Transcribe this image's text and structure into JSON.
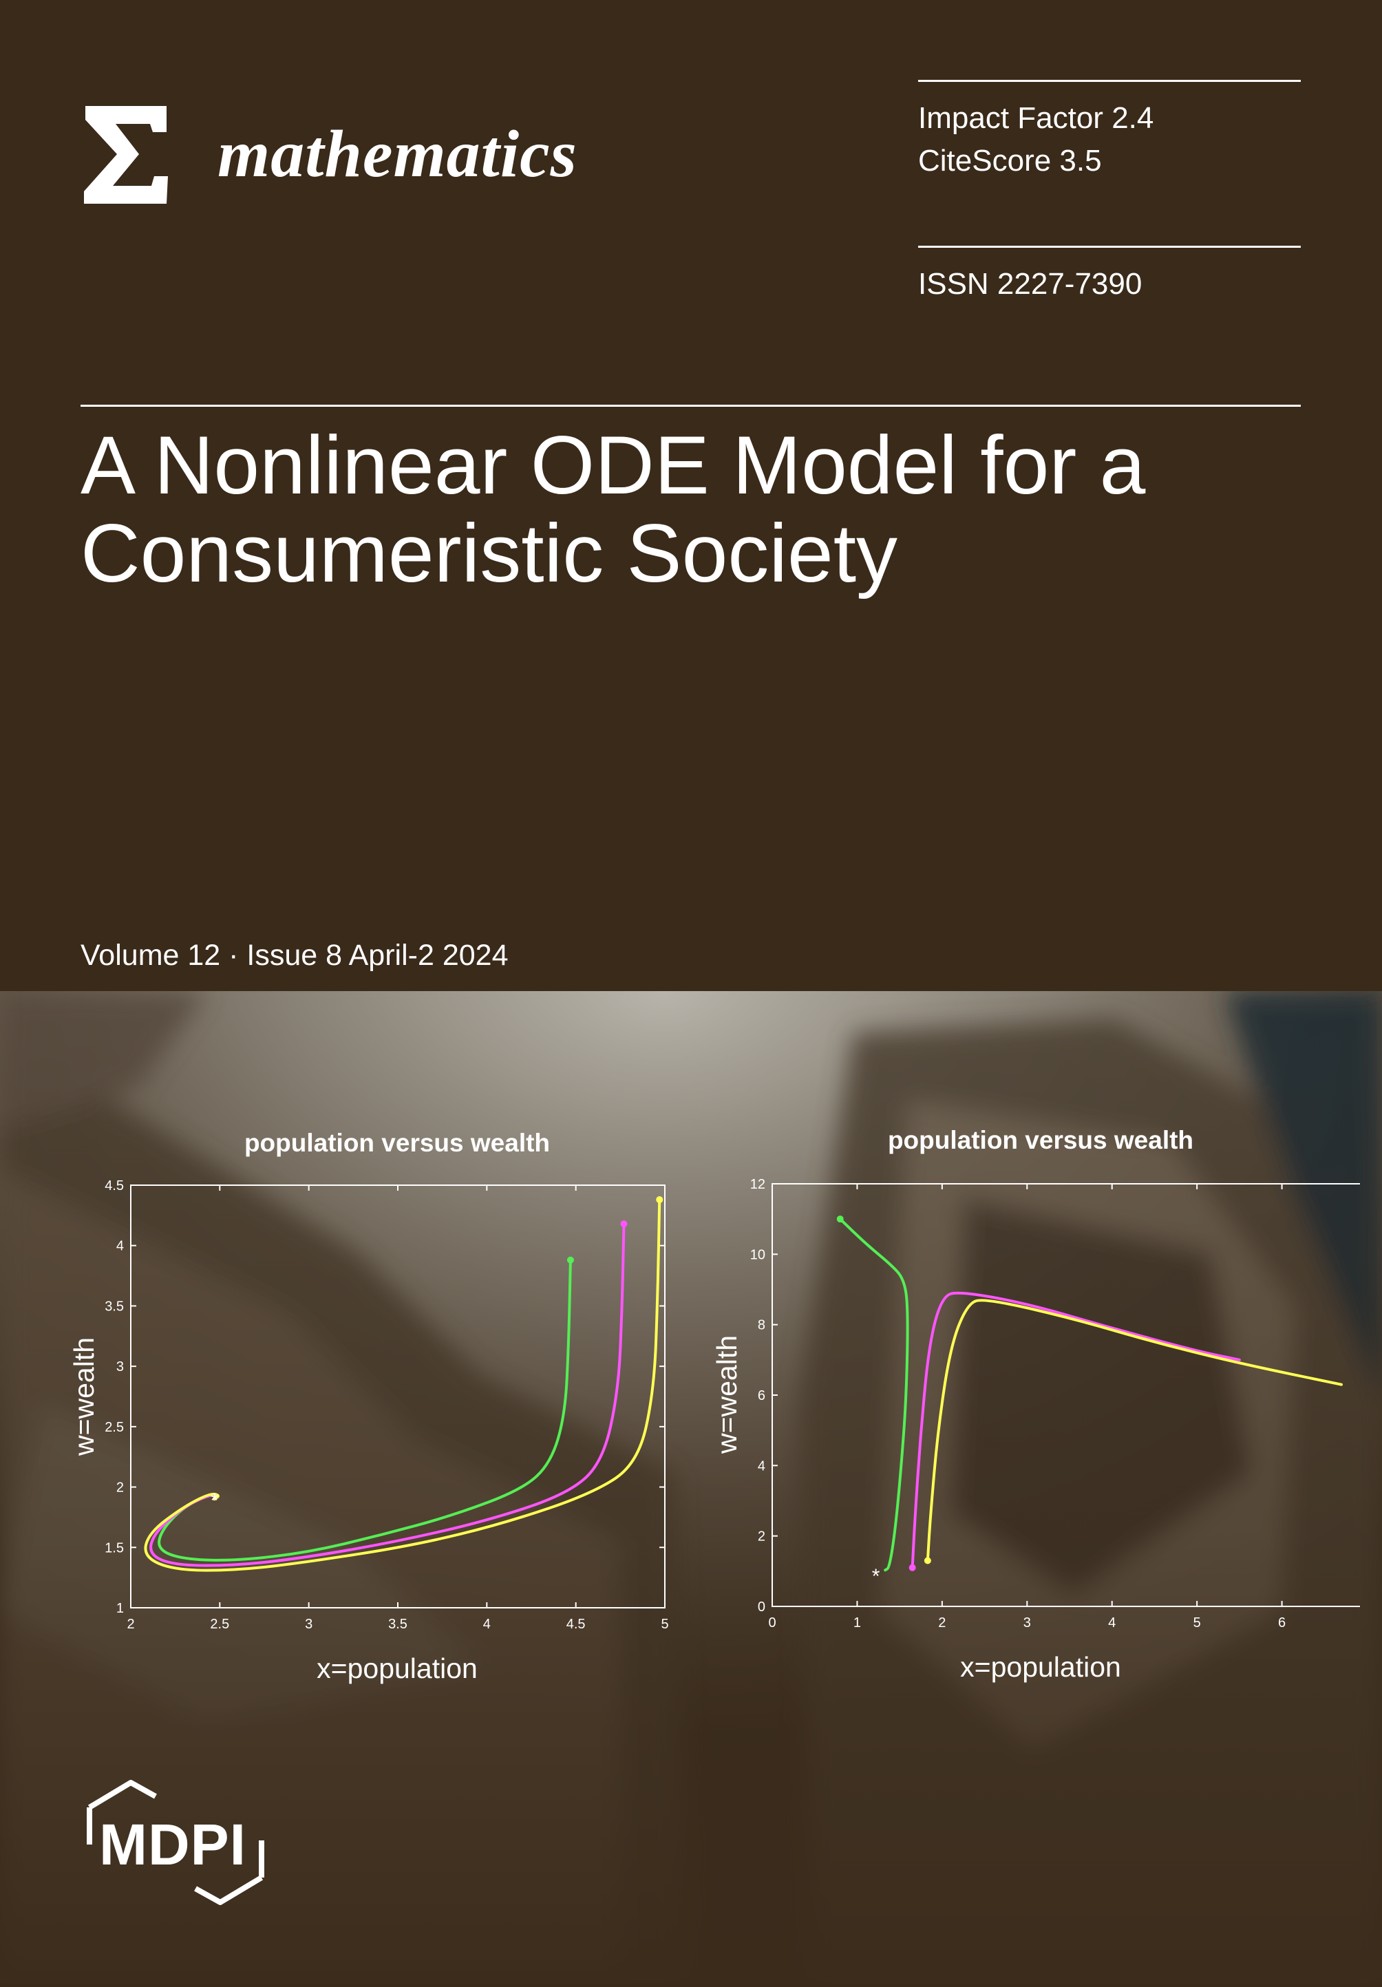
{
  "journal": {
    "name": "mathematics",
    "logo_icon": "sigma-icon"
  },
  "metrics": {
    "impact_factor": "Impact Factor 2.4",
    "citescore": "CiteScore 3.5",
    "issn": "ISSN 2227-7390"
  },
  "article": {
    "title": "A Nonlinear ODE Model for a\nConsumeristic Society"
  },
  "issue": {
    "label": "Volume 12 · Issue 8 April-2 2024"
  },
  "publisher": {
    "name": "MDPI",
    "logo_icon": "mdpi-hexagon-logo-icon"
  },
  "colors": {
    "background": "#3a2a1a",
    "series_green": "#55ee55",
    "series_magenta": "#ff55ff",
    "series_yellow": "#ffff55"
  },
  "chart_data": [
    {
      "type": "line",
      "title": "population versus wealth",
      "xlabel": "x=population",
      "ylabel": "w=wealth",
      "xlim": [
        2,
        5
      ],
      "ylim": [
        1,
        4.5
      ],
      "xticks": [
        "2",
        "2.5",
        "3",
        "3.5",
        "4",
        "4.5",
        "5"
      ],
      "yticks": [
        "1",
        "1.5",
        "2",
        "2.5",
        "3",
        "3.5",
        "4",
        "4.5"
      ],
      "equilibrium_marker": {
        "symbol": "*",
        "x": 2.47,
        "y": 1.9
      },
      "series": [
        {
          "color": "#55ee55",
          "points": [
            [
              4.47,
              3.88
            ],
            [
              4.46,
              3.2
            ],
            [
              4.44,
              2.6
            ],
            [
              4.36,
              2.2
            ],
            [
              4.2,
              1.98
            ],
            [
              3.8,
              1.76
            ],
            [
              3.4,
              1.6
            ],
            [
              3.0,
              1.46
            ],
            [
              2.6,
              1.39
            ],
            [
              2.3,
              1.4
            ],
            [
              2.15,
              1.48
            ],
            [
              2.17,
              1.64
            ],
            [
              2.3,
              1.84
            ],
            [
              2.45,
              1.94
            ],
            [
              2.5,
              1.93
            ],
            [
              2.47,
              1.9
            ]
          ]
        },
        {
          "color": "#ff55ff",
          "points": [
            [
              4.77,
              4.18
            ],
            [
              4.76,
              3.5
            ],
            [
              4.74,
              2.8
            ],
            [
              4.65,
              2.2
            ],
            [
              4.45,
              1.94
            ],
            [
              4.0,
              1.72
            ],
            [
              3.5,
              1.55
            ],
            [
              3.0,
              1.42
            ],
            [
              2.6,
              1.35
            ],
            [
              2.25,
              1.35
            ],
            [
              2.1,
              1.44
            ],
            [
              2.13,
              1.62
            ],
            [
              2.3,
              1.84
            ],
            [
              2.45,
              1.94
            ],
            [
              2.5,
              1.93
            ],
            [
              2.47,
              1.9
            ]
          ]
        },
        {
          "color": "#ffff55",
          "points": [
            [
              4.97,
              4.38
            ],
            [
              4.96,
              3.6
            ],
            [
              4.94,
              2.8
            ],
            [
              4.85,
              2.2
            ],
            [
              4.6,
              1.95
            ],
            [
              4.1,
              1.7
            ],
            [
              3.6,
              1.52
            ],
            [
              3.0,
              1.38
            ],
            [
              2.6,
              1.31
            ],
            [
              2.25,
              1.31
            ],
            [
              2.07,
              1.42
            ],
            [
              2.1,
              1.62
            ],
            [
              2.3,
              1.84
            ],
            [
              2.45,
              1.95
            ],
            [
              2.5,
              1.93
            ],
            [
              2.47,
              1.9
            ]
          ]
        }
      ]
    },
    {
      "type": "line",
      "title": "population versus wealth",
      "xlabel": "x=population",
      "ylabel": "w=wealth",
      "xlim": [
        0,
        7
      ],
      "ylim": [
        0,
        12
      ],
      "xticks": [
        "0",
        "1",
        "2",
        "3",
        "4",
        "5",
        "6",
        "7"
      ],
      "yticks": [
        "0",
        "2",
        "4",
        "6",
        "8",
        "10",
        "12"
      ],
      "equilibrium_marker": {
        "symbol": "*",
        "x": 1.22,
        "y": 0.9
      },
      "series": [
        {
          "color": "#55ee55",
          "points": [
            [
              0.8,
              11.0
            ],
            [
              1.1,
              10.3
            ],
            [
              1.4,
              9.7
            ],
            [
              1.55,
              9.3
            ],
            [
              1.6,
              8.5
            ],
            [
              1.58,
              6.0
            ],
            [
              1.52,
              4.0
            ],
            [
              1.45,
              2.2
            ],
            [
              1.38,
              1.1
            ],
            [
              1.33,
              1.03
            ]
          ]
        },
        {
          "color": "#ff55ff",
          "points": [
            [
              1.65,
              1.1
            ],
            [
              1.68,
              2.5
            ],
            [
              1.75,
              5.0
            ],
            [
              1.85,
              7.5
            ],
            [
              2.0,
              8.8
            ],
            [
              2.2,
              8.95
            ],
            [
              3.0,
              8.6
            ],
            [
              4.0,
              7.9
            ],
            [
              5.0,
              7.25
            ],
            [
              5.5,
              7.0
            ]
          ]
        },
        {
          "color": "#ffff55",
          "points": [
            [
              1.83,
              1.3
            ],
            [
              1.86,
              2.5
            ],
            [
              1.95,
              5.0
            ],
            [
              2.1,
              7.4
            ],
            [
              2.3,
              8.6
            ],
            [
              2.5,
              8.75
            ],
            [
              3.5,
              8.2
            ],
            [
              4.5,
              7.5
            ],
            [
              5.5,
              6.9
            ],
            [
              6.7,
              6.3
            ]
          ]
        }
      ]
    }
  ]
}
